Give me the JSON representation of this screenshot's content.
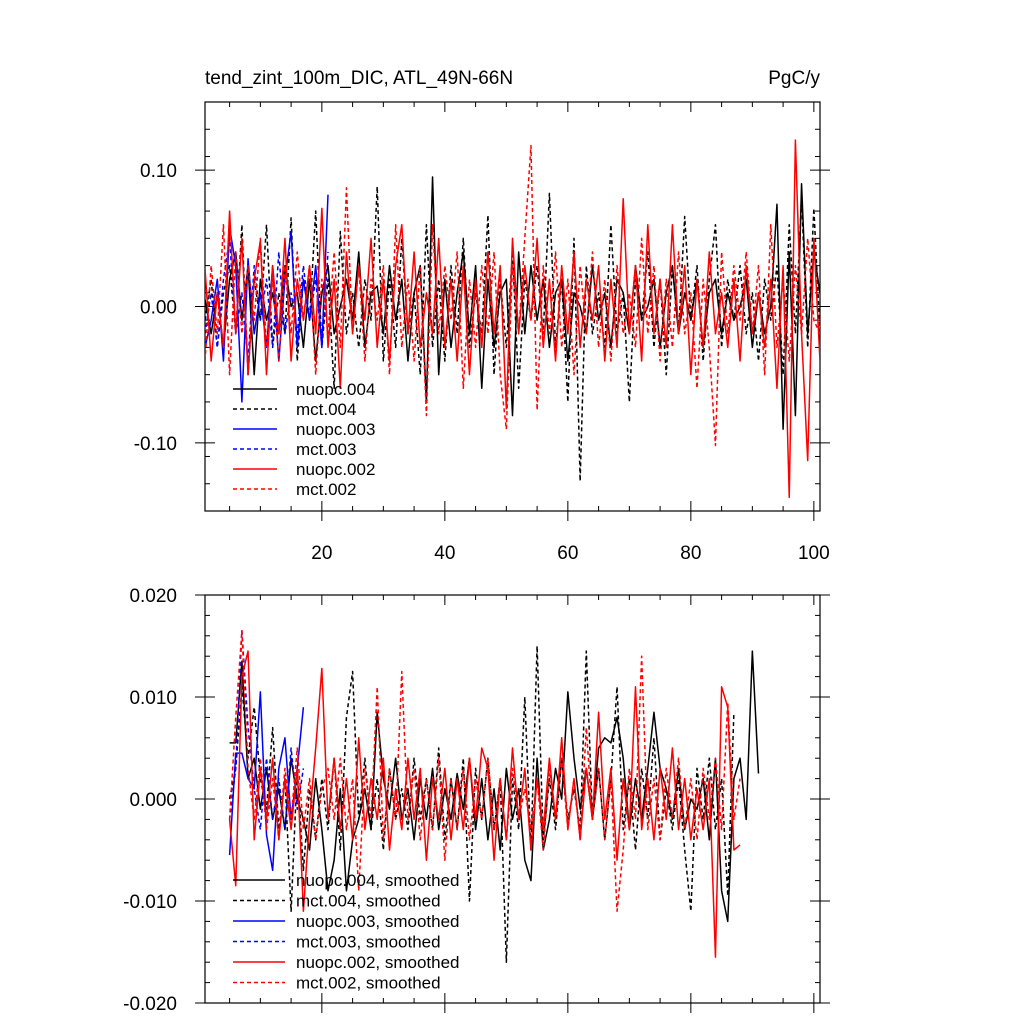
{
  "chart_data": [
    {
      "type": "line",
      "title": "tend_zint_100m_DIC, ATL_49N-66N",
      "units_label": "PgC/y",
      "xlabel": "",
      "ylabel": "",
      "xlim": [
        1,
        101
      ],
      "ylim": [
        -0.15,
        0.15
      ],
      "xticks": [
        20,
        40,
        60,
        80,
        100
      ],
      "xtick_labels": [
        "20",
        "40",
        "60",
        "80",
        "100"
      ],
      "yticks": [
        -0.1,
        0.0,
        0.1
      ],
      "ytick_labels": [
        "-0.10",
        "0.00",
        "0.10"
      ],
      "legend_position": "bottom-left",
      "series": [
        {
          "name": "nuopc.004",
          "color": "#000000",
          "dash": "solid",
          "start_x": 1,
          "values": [
            0.005,
            -0.02,
            0.01,
            -0.03,
            0.02,
            0.04,
            -0.01,
            0.03,
            -0.05,
            0.02,
            -0.01,
            0.01,
            -0.02,
            0.03,
            0.0,
            0.01,
            -0.03,
            0.02,
            -0.04,
            0.01,
            0.03,
            -0.02,
            0.0,
            0.02,
            -0.01,
            0.04,
            -0.03,
            0.01,
            0.015,
            -0.02,
            0.03,
            -0.01,
            0.02,
            -0.04,
            0.01,
            0.03,
            -0.07,
            0.095,
            -0.05,
            0.02,
            -0.03,
            0.01,
            0.04,
            -0.02,
            0.03,
            -0.06,
            0.02,
            -0.03,
            0.01,
            0.02,
            -0.08,
            0.04,
            -0.02,
            0.03,
            -0.01,
            0.02,
            -0.03,
            0.01,
            0.02,
            -0.04,
            0.01,
            0.0,
            -0.02,
            0.03,
            -0.01,
            0.01,
            -0.03,
            0.02,
            0.01,
            -0.02,
            0.03,
            -0.01,
            0.0,
            0.02,
            -0.03,
            0.01,
            0.03,
            -0.02,
            0.01,
            -0.01,
            0.02,
            -0.03,
            0.01,
            0.02,
            -0.02,
            0.01,
            -0.01,
            0.0,
            0.02,
            -0.03,
            0.01,
            -0.02,
            0.0,
            0.075,
            -0.09,
            0.04,
            -0.08,
            0.09,
            -0.02,
            0.04,
            0.01
          ]
        },
        {
          "name": "mct.004",
          "color": "#000000",
          "dash": "dashed",
          "start_x": 1,
          "values": [
            -0.01,
            0.02,
            -0.03,
            0.01,
            0.03,
            -0.02,
            0.06,
            -0.05,
            0.02,
            -0.01,
            0.06,
            -0.03,
            0.01,
            -0.02,
            0.065,
            -0.04,
            0.02,
            -0.01,
            0.07,
            -0.03,
            0.02,
            -0.06,
            0.055,
            -0.02,
            0.01,
            -0.03,
            0.02,
            -0.01,
            0.088,
            -0.04,
            0.02,
            -0.03,
            0.05,
            -0.02,
            0.01,
            -0.05,
            0.06,
            -0.03,
            0.02,
            -0.04,
            0.03,
            -0.02,
            0.05,
            -0.03,
            0.01,
            -0.02,
            0.067,
            -0.05,
            0.02,
            -0.03,
            0.04,
            -0.06,
            0.02,
            -0.01,
            0.03,
            -0.02,
            0.083,
            -0.03,
            0.02,
            -0.07,
            0.05,
            -0.128,
            0.03,
            -0.02,
            0.01,
            -0.03,
            0.06,
            -0.02,
            0.01,
            -0.07,
            0.02,
            -0.01,
            0.04,
            -0.03,
            0.02,
            -0.05,
            0.03,
            -0.02,
            0.066,
            -0.01,
            0.03,
            -0.04,
            0.02,
            0.06,
            -0.03,
            0.02,
            -0.01,
            0.03,
            -0.02,
            0.01,
            -0.04,
            0.02,
            -0.01,
            0.03,
            -0.05,
            0.06,
            -0.02,
            0.08,
            -0.03,
            0.072,
            -0.02
          ]
        },
        {
          "name": "nuopc.003",
          "color": "#0000ff",
          "dash": "solid",
          "start_x": 1,
          "values": [
            -0.03,
            -0.01,
            0.02,
            -0.04,
            0.058,
            0.03,
            -0.07,
            0.035,
            -0.02,
            0.01,
            -0.03,
            0.03,
            -0.04,
            0.02,
            0.055,
            -0.03,
            0.02,
            -0.01,
            0.03,
            -0.03,
            0.082
          ]
        },
        {
          "name": "mct.003",
          "color": "#0000ff",
          "dash": "dashed",
          "start_x": 1,
          "values": [
            -0.02,
            0.01,
            -0.03,
            0.02,
            0.05,
            -0.02,
            0.01,
            -0.04,
            0.03,
            -0.01,
            0.02,
            -0.03,
            0.04,
            -0.02,
            0.01,
            -0.02,
            0.03,
            -0.01,
            0.02,
            -0.03,
            0.04
          ]
        },
        {
          "name": "nuopc.002",
          "color": "#ff0000",
          "dash": "solid",
          "start_x": 1,
          "values": [
            0.028,
            -0.04,
            0.01,
            -0.03,
            0.07,
            -0.02,
            0.05,
            -0.05,
            0.02,
            0.048,
            -0.05,
            0.03,
            -0.02,
            0.05,
            -0.04,
            0.02,
            -0.01,
            0.03,
            -0.02,
            0.072,
            -0.03,
            0.02,
            -0.06,
            0.04,
            -0.02,
            0.03,
            -0.01,
            0.05,
            -0.03,
            0.02,
            -0.04,
            0.03,
            0.06,
            -0.02,
            0.04,
            -0.03,
            0.01,
            -0.02,
            0.05,
            -0.03,
            0.02,
            -0.04,
            0.03,
            -0.05,
            0.02,
            -0.03,
            0.04,
            -0.02,
            0.03,
            -0.075,
            0.05,
            -0.02,
            0.03,
            -0.01,
            0.05,
            -0.03,
            0.02,
            -0.04,
            0.03,
            -0.02,
            0.04,
            -0.03,
            0.02,
            -0.01,
            0.03,
            -0.04,
            0.02,
            -0.03,
            0.079,
            -0.02,
            0.03,
            -0.04,
            0.06,
            -0.02,
            0.02,
            -0.03,
            0.06,
            -0.02,
            0.03,
            -0.05,
            0.02,
            -0.03,
            0.04,
            -0.02,
            0.01,
            -0.03,
            0.02,
            -0.04,
            0.03,
            -0.02,
            0.01,
            -0.03,
            0.02,
            -0.06,
            0.03,
            -0.14,
            0.122,
            -0.02,
            -0.113,
            0.05,
            -0.04
          ]
        },
        {
          "name": "mct.002",
          "color": "#ff0000",
          "dash": "dashed",
          "start_x": 1,
          "values": [
            -0.04,
            0.03,
            -0.02,
            0.06,
            -0.05,
            0.04,
            -0.02,
            0.03,
            -0.01,
            0.05,
            -0.03,
            0.02,
            -0.04,
            0.03,
            -0.02,
            0.04,
            -0.01,
            0.03,
            -0.05,
            0.02,
            -0.02,
            0.04,
            -0.03,
            0.087,
            -0.02,
            0.03,
            -0.04,
            0.02,
            -0.01,
            0.03,
            -0.05,
            0.06,
            -0.03,
            0.02,
            -0.04,
            0.03,
            -0.08,
            0.06,
            -0.02,
            0.03,
            -0.01,
            0.04,
            -0.06,
            0.02,
            -0.03,
            0.03,
            -0.02,
            0.04,
            -0.05,
            -0.09,
            0.03,
            -0.02,
            0.05,
            0.118,
            -0.076,
            0.03,
            -0.02,
            0.04,
            -0.03,
            0.02,
            -0.05,
            0.03,
            -0.02,
            0.04,
            -0.03,
            0.02,
            -0.04,
            0.03,
            -0.02,
            0.01,
            -0.03,
            0.05,
            -0.02,
            0.03,
            -0.04,
            0.02,
            -0.03,
            0.04,
            -0.02,
            0.01,
            -0.06,
            0.02,
            -0.03,
            -0.102,
            0.04,
            -0.02,
            0.03,
            -0.01,
            0.04,
            -0.02,
            0.03,
            -0.05,
            0.06,
            -0.03,
            0.02,
            -0.04,
            0.03,
            -0.02,
            0.05,
            -0.01,
            -0.02
          ]
        }
      ]
    },
    {
      "type": "line",
      "title": "",
      "xlabel": "",
      "ylabel": "",
      "xlim": [
        1,
        101
      ],
      "ylim": [
        -0.02,
        0.02
      ],
      "xticks": [
        20,
        40,
        60,
        80,
        100
      ],
      "xtick_labels": [],
      "yticks": [
        -0.02,
        -0.01,
        0.0,
        0.01,
        0.02
      ],
      "ytick_labels": [
        "-0.020",
        "-0.010",
        "0.000",
        "0.010",
        "0.020"
      ],
      "legend_position": "bottom-left",
      "series": [
        {
          "name": "nuopc.004, smoothed",
          "color": "#000000",
          "dash": "solid",
          "start_x": 5,
          "values": [
            0.0055,
            0.0055,
            0.0135,
            0.002,
            0.004,
            -0.001,
            0.003,
            -0.002,
            0.001,
            -0.003,
            0.004,
            0.0,
            -0.002,
            -0.005,
            0.002,
            -0.003,
            -0.009,
            -0.006,
            0.001,
            -0.009,
            -0.004,
            -0.002,
            0.001,
            -0.003,
            0.0085,
            0.002,
            -0.001,
            0.004,
            -0.002,
            0.001,
            -0.004,
            0.002,
            -0.002,
            0.003,
            -0.003,
            0.001,
            -0.002,
            0.0025,
            -0.001,
            0.004,
            -0.003,
            0.002,
            -0.004,
            0.001,
            -0.005,
            0.003,
            -0.002,
            0.001,
            -0.006,
            -0.008,
            0.004,
            -0.005,
            -0.002,
            0.003,
            0.0,
            0.0105,
            0.004,
            -0.001,
            0.003,
            -0.002,
            0.005,
            0.006,
            0.0055,
            0.008,
            0.004,
            -0.003,
            0.002,
            -0.002,
            0.003,
            0.0085,
            0.003,
            0.001,
            -0.002,
            0.003,
            -0.003,
            0.0,
            -0.001,
            0.002,
            -0.004,
            0.004,
            -0.009,
            -0.012,
            0.002,
            0.004,
            -0.002,
            0.0145,
            0.0025
          ]
        },
        {
          "name": "mct.004, smoothed",
          "color": "#000000",
          "dash": "dashed",
          "start_x": 5,
          "values": [
            0.0,
            0.003,
            0.011,
            0.004,
            0.009,
            0.002,
            -0.001,
            0.007,
            -0.003,
            0.002,
            -0.011,
            0.003,
            -0.007,
            0.001,
            -0.004,
            0.002,
            -0.003,
            0.004,
            -0.005,
            0.008,
            0.0125,
            -0.002,
            0.004,
            -0.003,
            0.002,
            -0.005,
            0.003,
            -0.002,
            0.001,
            -0.003,
            0.004,
            -0.002,
            0.002,
            -0.003,
            0.005,
            -0.004,
            0.002,
            -0.003,
            0.004,
            -0.01,
            0.003,
            -0.002,
            0.004,
            -0.003,
            0.002,
            -0.016,
            0.002,
            -0.003,
            0.01,
            -0.005,
            0.015,
            -0.004,
            0.002,
            -0.003,
            0.004,
            -0.002,
            0.001,
            -0.003,
            0.0145,
            -0.002,
            0.003,
            -0.004,
            0.002,
            0.011,
            -0.003,
            0.002,
            -0.005,
            0.003,
            -0.002,
            0.006,
            -0.004,
            0.001,
            -0.003,
            0.002,
            -0.005,
            -0.011,
            0.003,
            -0.002,
            0.004,
            -0.003,
            0.002,
            -0.0095,
            0.0085
          ]
        },
        {
          "name": "nuopc.003, smoothed",
          "color": "#0000ff",
          "dash": "solid",
          "start_x": 5,
          "values": [
            -0.0055,
            0.0045,
            0.0045,
            0.002,
            0.001,
            0.0105,
            -0.0035,
            -0.007,
            0.003,
            0.006,
            -0.002,
            0.003,
            0.009
          ]
        },
        {
          "name": "mct.003, smoothed",
          "color": "#0000ff",
          "dash": "dashed",
          "start_x": 5,
          "values": [
            -0.002,
            0.003,
            0.0165,
            0.007,
            0.001,
            -0.003,
            0.004,
            -0.002,
            0.002,
            -0.003,
            0.005,
            -0.001,
            0.003
          ]
        },
        {
          "name": "nuopc.002, smoothed",
          "color": "#ff0000",
          "dash": "solid",
          "start_x": 5,
          "values": [
            -0.002,
            -0.0085,
            0.012,
            0.0145,
            -0.004,
            0.003,
            -0.002,
            0.004,
            -0.004,
            0.002,
            -0.003,
            0.003,
            -0.011,
            -0.002,
            0.005,
            0.0128,
            -0.002,
            0.004,
            -0.003,
            0.002,
            -0.004,
            0.006,
            -0.003,
            0.002,
            -0.002,
            0.004,
            -0.005,
            0.001,
            -0.003,
            0.004,
            -0.002,
            0.003,
            -0.006,
            0.002,
            -0.002,
            0.003,
            -0.004,
            0.002,
            -0.003,
            0.004,
            -0.002,
            0.005,
            0.003,
            -0.006,
            0.002,
            -0.004,
            0.005,
            -0.002,
            0.003,
            -0.005,
            0.002,
            -0.003,
            0.004,
            -0.002,
            0.006,
            -0.003,
            0.002,
            -0.004,
            0.003,
            -0.002,
            0.0085,
            -0.002,
            0.003,
            -0.006,
            0.002,
            -0.003,
            0.011,
            -0.003,
            0.002,
            -0.004,
            0.003,
            -0.002,
            0.005,
            -0.003,
            0.002,
            -0.004,
            0.001,
            -0.003,
            0.002,
            -0.0155,
            0.011,
            0.009,
            -0.005,
            -0.0045
          ]
        },
        {
          "name": "mct.002, smoothed",
          "color": "#ff0000",
          "dash": "dashed",
          "start_x": 5,
          "values": [
            -0.002,
            0.008,
            0.0165,
            0.003,
            -0.002,
            0.004,
            -0.003,
            0.002,
            -0.004,
            0.003,
            -0.002,
            0.005,
            -0.003,
            0.002,
            -0.004,
            0.001,
            0.003,
            -0.002,
            0.004,
            -0.003,
            0.002,
            -0.009,
            0.003,
            -0.002,
            0.011,
            -0.004,
            0.003,
            -0.002,
            0.0125,
            -0.002,
            0.003,
            -0.004,
            0.002,
            -0.003,
            0.004,
            -0.006,
            0.002,
            -0.003,
            0.003,
            -0.004,
            0.002,
            -0.002,
            0.004,
            -0.003,
            0.002,
            -0.004,
            0.003,
            -0.002,
            0.001,
            -0.003,
            0.002,
            -0.005,
            0.003,
            -0.002,
            0.004,
            -0.003,
            0.002,
            -0.004,
            0.007,
            -0.002,
            0.003,
            -0.004,
            0.002,
            -0.011,
            -0.005,
            0.003,
            -0.002,
            0.014,
            -0.003,
            0.002,
            -0.004,
            0.003,
            -0.002,
            0.004,
            -0.003,
            0.002,
            -0.004,
            0.003,
            -0.002,
            0.004,
            -0.003,
            0.0095,
            -0.002,
            0.002
          ]
        }
      ]
    }
  ]
}
